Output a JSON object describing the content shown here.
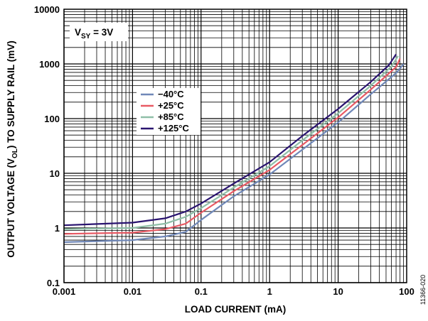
{
  "chart_data": {
    "type": "line",
    "x_scale": "log",
    "y_scale": "log",
    "xlim": [
      0.001,
      100
    ],
    "ylim": [
      0.1,
      10000
    ],
    "grid": true,
    "xlabel": "LOAD CURRENT (mA)",
    "ylabel_parts": [
      "OUTPUT VOLTAGE (V",
      "OL",
      ") TO SUPPLY RAIL (mV)"
    ],
    "xticks": [
      "0.001",
      "0.01",
      "0.1",
      "1",
      "10",
      "100"
    ],
    "yticks": [
      "0.1",
      "1",
      "10",
      "100",
      "1000",
      "10000"
    ],
    "annotation": {
      "main": "V",
      "sub": "SY",
      "rest": " = 3V"
    },
    "figure_id": "11366-020",
    "legend_position": "upper-left-center",
    "series": [
      {
        "name": "−40°C",
        "color": "#7088b8",
        "points": [
          [
            0.001,
            0.55
          ],
          [
            0.01,
            0.6
          ],
          [
            0.03,
            0.7
          ],
          [
            0.06,
            0.85
          ],
          [
            0.1,
            1.4
          ],
          [
            0.3,
            3.8
          ],
          [
            1,
            9.5
          ],
          [
            3,
            27
          ],
          [
            10,
            85
          ],
          [
            30,
            280
          ],
          [
            70,
            680
          ],
          [
            90,
            1000
          ]
        ]
      },
      {
        "name": "+25°C",
        "color": "#e85a64",
        "points": [
          [
            0.001,
            0.78
          ],
          [
            0.01,
            0.82
          ],
          [
            0.03,
            0.95
          ],
          [
            0.06,
            1.2
          ],
          [
            0.1,
            1.9
          ],
          [
            0.3,
            4.7
          ],
          [
            1,
            11.5
          ],
          [
            3,
            33
          ],
          [
            10,
            105
          ],
          [
            30,
            340
          ],
          [
            70,
            880
          ],
          [
            80,
            1250
          ]
        ]
      },
      {
        "name": "+85°C",
        "color": "#8fbfa8",
        "points": [
          [
            0.001,
            0.95
          ],
          [
            0.01,
            1.0
          ],
          [
            0.03,
            1.2
          ],
          [
            0.06,
            1.6
          ],
          [
            0.1,
            2.3
          ],
          [
            0.3,
            5.5
          ],
          [
            1,
            13.5
          ],
          [
            3,
            40
          ],
          [
            10,
            125
          ],
          [
            30,
            400
          ],
          [
            60,
            900
          ],
          [
            75,
            1400
          ]
        ]
      },
      {
        "name": "+125°C",
        "color": "#2a1470",
        "points": [
          [
            0.001,
            1.12
          ],
          [
            0.01,
            1.25
          ],
          [
            0.03,
            1.5
          ],
          [
            0.06,
            2.0
          ],
          [
            0.1,
            2.8
          ],
          [
            0.3,
            6.5
          ],
          [
            1,
            16
          ],
          [
            3,
            48
          ],
          [
            10,
            150
          ],
          [
            30,
            470
          ],
          [
            55,
            950
          ],
          [
            70,
            1500
          ]
        ]
      }
    ]
  }
}
